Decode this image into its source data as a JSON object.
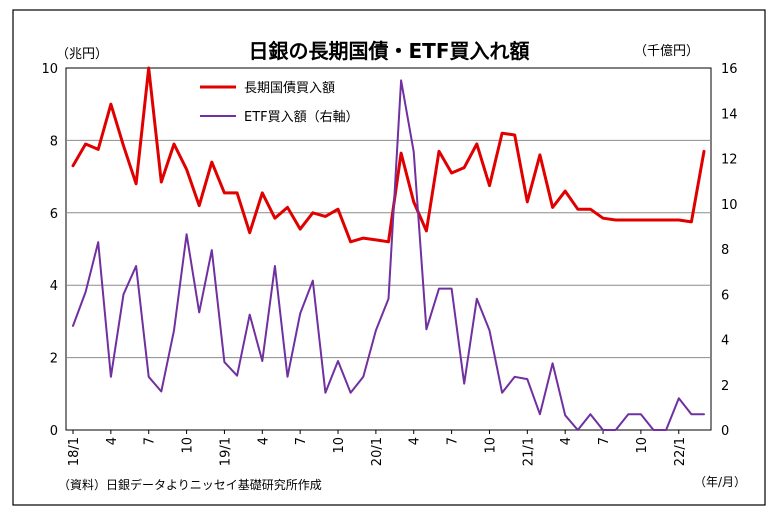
{
  "chart_data": {
    "type": "line",
    "title": "日銀の長期国債・ETF買入れ額",
    "left_unit": "（兆円）",
    "right_unit": "（千億円）",
    "x_unit": "（年/月）",
    "source": "（資料）日銀データよりニッセイ基礎研究所作成",
    "ylim_left": [
      0,
      10
    ],
    "ylim_right": [
      0,
      16
    ],
    "yticks_left": [
      "0",
      "2",
      "4",
      "6",
      "8",
      "10"
    ],
    "yticks_right": [
      "0",
      "2",
      "4",
      "6",
      "8",
      "10",
      "12",
      "14",
      "16"
    ],
    "grid": true,
    "legend_position": "top-left-inside",
    "x_tick_labels": [
      {
        "i": 0,
        "label": "18/1"
      },
      {
        "i": 3,
        "label": "4"
      },
      {
        "i": 6,
        "label": "7"
      },
      {
        "i": 9,
        "label": "10"
      },
      {
        "i": 12,
        "label": "19/1"
      },
      {
        "i": 15,
        "label": "4"
      },
      {
        "i": 18,
        "label": "7"
      },
      {
        "i": 21,
        "label": "10"
      },
      {
        "i": 24,
        "label": "20/1"
      },
      {
        "i": 27,
        "label": "4"
      },
      {
        "i": 30,
        "label": "7"
      },
      {
        "i": 33,
        "label": "10"
      },
      {
        "i": 36,
        "label": "21/1"
      },
      {
        "i": 39,
        "label": "4"
      },
      {
        "i": 42,
        "label": "7"
      },
      {
        "i": 45,
        "label": "10"
      },
      {
        "i": 48,
        "label": "22/1"
      }
    ],
    "series": [
      {
        "name": "長期国債買入額",
        "axis": "left",
        "color": "#e00000",
        "values": [
          7.3,
          7.9,
          7.75,
          9.0,
          7.85,
          6.8,
          10.0,
          6.85,
          7.9,
          7.2,
          6.2,
          7.4,
          6.55,
          6.55,
          5.45,
          6.55,
          5.85,
          6.15,
          5.55,
          6.0,
          5.9,
          6.1,
          5.2,
          5.3,
          5.25,
          5.2,
          7.65,
          6.3,
          5.5,
          7.7,
          7.1,
          7.25,
          7.9,
          6.75,
          8.2,
          8.15,
          6.3,
          7.6,
          6.15,
          6.6,
          6.1,
          6.1,
          5.85,
          5.8,
          5.8,
          5.8,
          5.8,
          5.8,
          5.8,
          5.75,
          7.7
        ]
      },
      {
        "name": "ETF買入額（右軸）",
        "axis": "right",
        "color": "#7030a0",
        "values": [
          4.6,
          6.1,
          8.3,
          2.35,
          6.0,
          7.25,
          2.35,
          1.7,
          4.4,
          8.65,
          5.2,
          7.95,
          3.0,
          2.4,
          5.1,
          3.05,
          7.25,
          2.35,
          5.15,
          6.6,
          1.65,
          3.05,
          1.65,
          2.35,
          4.4,
          5.8,
          15.45,
          12.3,
          4.45,
          6.25,
          6.25,
          2.05,
          5.8,
          4.4,
          1.65,
          2.35,
          2.25,
          0.7,
          2.95,
          0.65,
          0.0,
          0.7,
          0.0,
          0.0,
          0.7,
          0.7,
          0.0,
          0.0,
          1.4,
          0.7,
          0.7
        ]
      }
    ]
  }
}
